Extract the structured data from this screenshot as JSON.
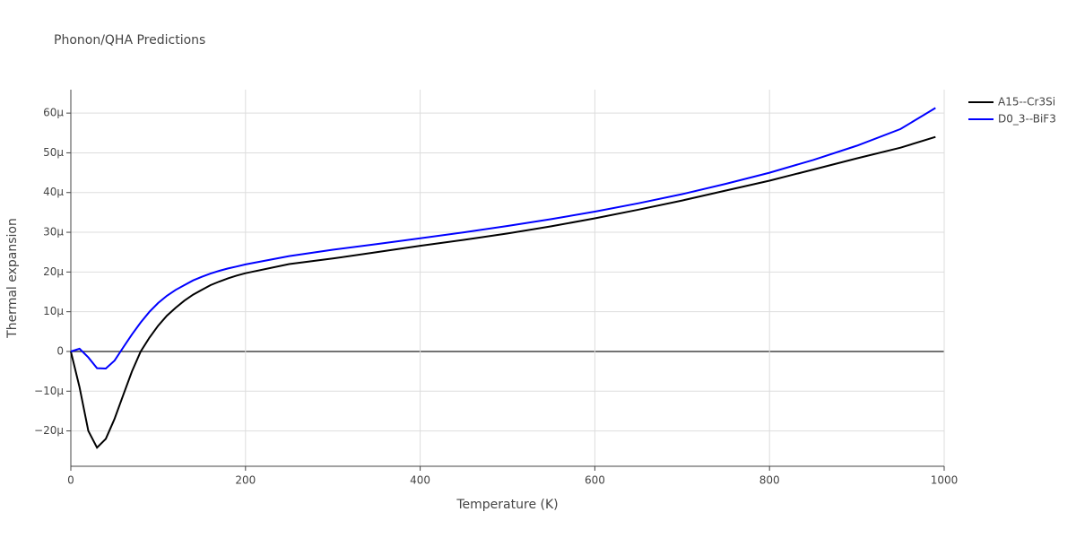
{
  "chart_data": {
    "type": "line",
    "title": "Phonon/QHA Predictions",
    "x_label": "Temperature (K)",
    "y_label": "Thermal expansion",
    "x": [
      0,
      10,
      20,
      30,
      40,
      50,
      60,
      70,
      80,
      90,
      100,
      110,
      120,
      130,
      140,
      150,
      160,
      170,
      180,
      190,
      200,
      250,
      300,
      350,
      400,
      450,
      500,
      550,
      600,
      650,
      700,
      750,
      800,
      850,
      900,
      950,
      990
    ],
    "series": [
      {
        "name": "A15--Cr3Si",
        "color": "#000000",
        "values": [
          0,
          -9,
          -20,
          -24.2,
          -22,
          -17,
          -11,
          -5,
          0,
          3.5,
          6.5,
          9,
          11,
          12.8,
          14.3,
          15.5,
          16.7,
          17.6,
          18.4,
          19.1,
          19.7,
          22,
          23.4,
          25,
          26.6,
          28.1,
          29.7,
          31.5,
          33.5,
          35.7,
          38,
          40.5,
          43,
          45.8,
          48.6,
          51.3,
          54
        ]
      },
      {
        "name": "D0_3--BiF3",
        "color": "#0000ff",
        "values": [
          0,
          0.7,
          -1.5,
          -4.2,
          -4.3,
          -2.3,
          1,
          4.3,
          7.3,
          10,
          12.2,
          14,
          15.5,
          16.7,
          17.9,
          18.8,
          19.6,
          20.3,
          20.9,
          21.4,
          21.9,
          24,
          25.6,
          27,
          28.5,
          30,
          31.6,
          33.3,
          35.2,
          37.3,
          39.6,
          42.2,
          45,
          48.2,
          51.8,
          56,
          61.3
        ]
      }
    ],
    "xlim": [
      0,
      1000
    ],
    "xticks": [
      0,
      200,
      400,
      600,
      800,
      1000
    ],
    "ylim": [
      -28.9,
      65.9
    ],
    "yticks": [
      {
        "value": -20,
        "label": "−20µ"
      },
      {
        "value": -10,
        "label": "−10µ"
      },
      0,
      {
        "value": 10,
        "label": "10µ"
      },
      {
        "value": 20,
        "label": "20µ"
      },
      {
        "value": 30,
        "label": "30µ"
      },
      {
        "value": 40,
        "label": "40µ"
      },
      {
        "value": 50,
        "label": "50µ"
      },
      {
        "value": 60,
        "label": "60µ"
      }
    ],
    "grid": true,
    "legend": "top-right"
  }
}
